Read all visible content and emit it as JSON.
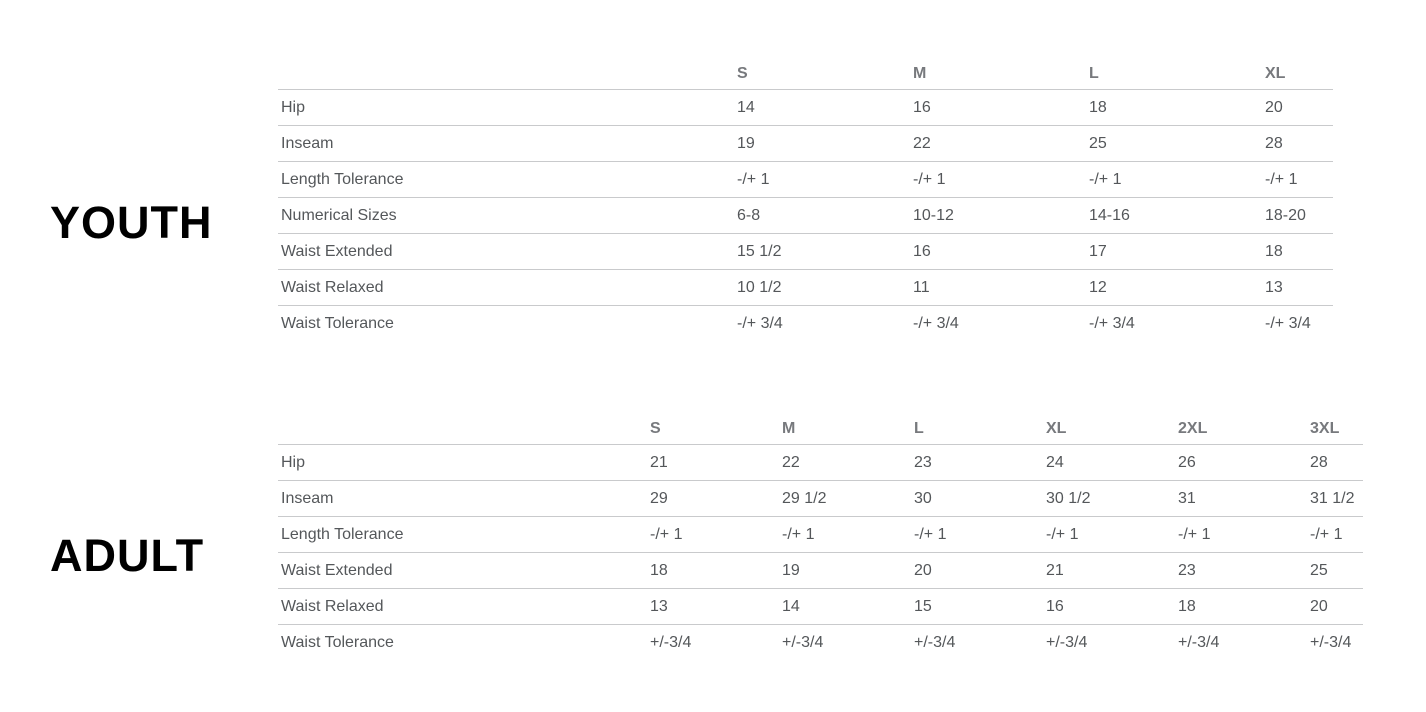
{
  "page": {
    "background": "#ffffff"
  },
  "colors": {
    "title_text": "#000000",
    "header_text": "#77797d",
    "body_text": "#54575a",
    "divider_line": "#c9cacc"
  },
  "sections": [
    {
      "id": "youth",
      "title": "YOUTH",
      "table": {
        "columns": [
          "S",
          "M",
          "L",
          "XL"
        ],
        "rows": [
          {
            "label": "Hip",
            "values": [
              "14",
              "16",
              "18",
              "20"
            ]
          },
          {
            "label": "Inseam",
            "values": [
              "19",
              "22",
              "25",
              "28"
            ]
          },
          {
            "label": "Length Tolerance",
            "values": [
              "-/+ 1",
              "-/+ 1",
              "-/+ 1",
              "-/+ 1"
            ]
          },
          {
            "label": "Numerical Sizes",
            "values": [
              "6-8",
              "10-12",
              "14-16",
              "18-20"
            ]
          },
          {
            "label": "Waist Extended",
            "values": [
              "15 1/2",
              "16",
              "17",
              "18"
            ]
          },
          {
            "label": "Waist Relaxed",
            "values": [
              "10 1/2",
              "11",
              "12",
              "13"
            ]
          },
          {
            "label": "Waist Tolerance",
            "values": [
              "-/+ 3/4",
              "-/+ 3/4",
              "-/+ 3/4",
              "-/+ 3/4"
            ]
          }
        ]
      }
    },
    {
      "id": "adult",
      "title": "ADULT",
      "table": {
        "columns": [
          "S",
          "M",
          "L",
          "XL",
          "2XL",
          "3XL"
        ],
        "rows": [
          {
            "label": "Hip",
            "values": [
              "21",
              "22",
              "23",
              "24",
              "26",
              "28"
            ]
          },
          {
            "label": "Inseam",
            "values": [
              "29",
              "29 1/2",
              "30",
              "30 1/2",
              "31",
              "31 1/2"
            ]
          },
          {
            "label": "Length Tolerance",
            "values": [
              "-/+ 1",
              "-/+ 1",
              "-/+ 1",
              "-/+ 1",
              "-/+ 1",
              "-/+ 1"
            ]
          },
          {
            "label": "Waist Extended",
            "values": [
              "18",
              "19",
              "20",
              "21",
              "23",
              "25"
            ]
          },
          {
            "label": "Waist Relaxed",
            "values": [
              "13",
              "14",
              "15",
              "16",
              "18",
              "20"
            ]
          },
          {
            "label": "Waist Tolerance",
            "values": [
              "+/-3/4",
              "+/-3/4",
              "+/-3/4",
              "+/-3/4",
              "+/-3/4",
              "+/-3/4"
            ]
          }
        ]
      }
    }
  ]
}
